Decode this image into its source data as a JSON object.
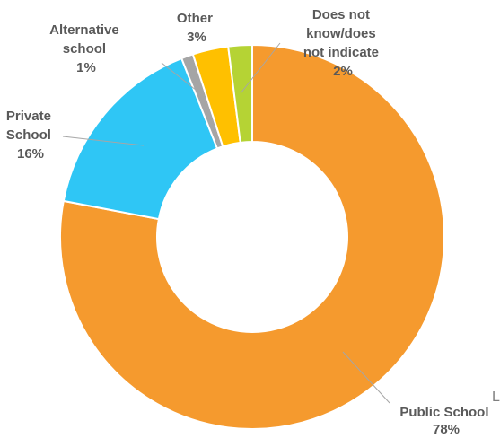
{
  "chart_data": {
    "type": "donut",
    "series": [
      {
        "category": "Public School",
        "value": 78,
        "label": "78%",
        "color": "#f59a2e"
      },
      {
        "category": "Private School",
        "value": 16,
        "label": "16%",
        "color": "#2fc6f5"
      },
      {
        "category": "Alternative school",
        "value": 1,
        "label": "1%",
        "color": "#a5a5a5"
      },
      {
        "category": "Other",
        "value": 3,
        "label": "3%",
        "color": "#ffc000"
      },
      {
        "category": "Does not know/does not indicate",
        "value": 2,
        "label": "2%",
        "color": "#b5d334"
      }
    ],
    "data_labels": {
      "public": {
        "lines": [
          "Public School",
          "78%"
        ]
      },
      "private": {
        "lines": [
          "Private",
          "School",
          "16%"
        ]
      },
      "alternative": {
        "lines": [
          "Alternative",
          "school",
          "1%"
        ]
      },
      "other": {
        "lines": [
          "Other",
          "3%"
        ]
      },
      "dnk": {
        "lines": [
          "Does not",
          "know/does",
          "not indicate",
          "2%"
        ]
      }
    },
    "stray_glyph": "L"
  }
}
